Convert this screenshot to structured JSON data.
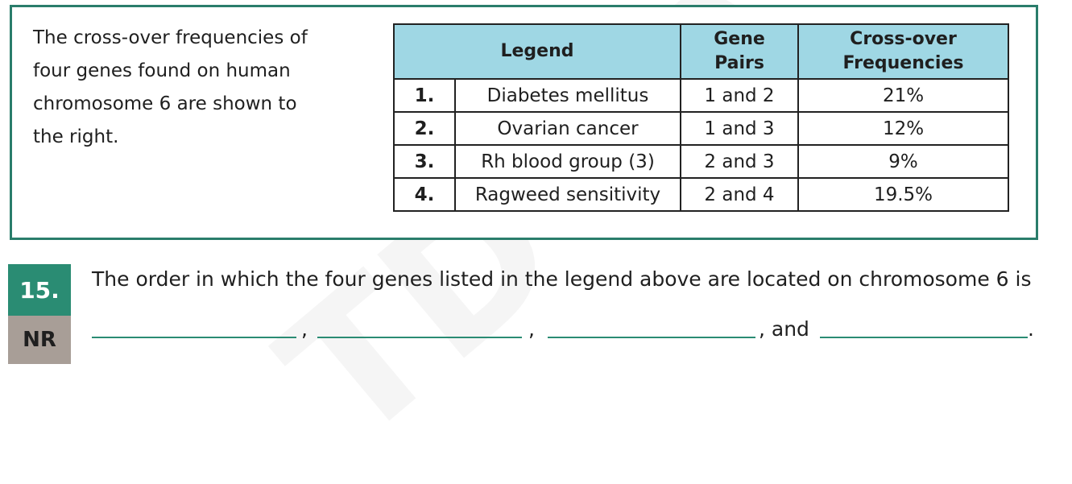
{
  "intro": {
    "lines": [
      "The cross-over frequencies of",
      "four genes found on human",
      "chromosome 6 are shown to",
      "the right."
    ]
  },
  "table": {
    "headers": {
      "legend": "Legend",
      "pairs_line1": "Gene",
      "pairs_line2": "Pairs",
      "freq_line1": "Cross-over",
      "freq_line2": "Frequencies"
    },
    "rows": [
      {
        "num": "1.",
        "name": "Diabetes mellitus",
        "pair": "1 and 2",
        "freq": "21%"
      },
      {
        "num": "2.",
        "name": "Ovarian cancer",
        "pair": "1 and 3",
        "freq": "12%"
      },
      {
        "num": "3.",
        "name": "Rh blood group (3)",
        "pair": "2 and 3",
        "freq": "9%"
      },
      {
        "num": "4.",
        "name": "Ragweed sensitivity",
        "pair": "2 and 4",
        "freq": "19.5%"
      }
    ]
  },
  "question": {
    "number": "15.",
    "type": "NR",
    "text": "The order in which the four genes listed in the legend above are located on chromosome 6 is",
    "sep1": ",",
    "sep2": ",",
    "sep3": ", and",
    "end": "."
  },
  "colors": {
    "border": "#2a7d6b",
    "header_bg": "#9fd7e4",
    "question_badge": "#2a8c73",
    "type_badge": "#a89e97"
  }
}
